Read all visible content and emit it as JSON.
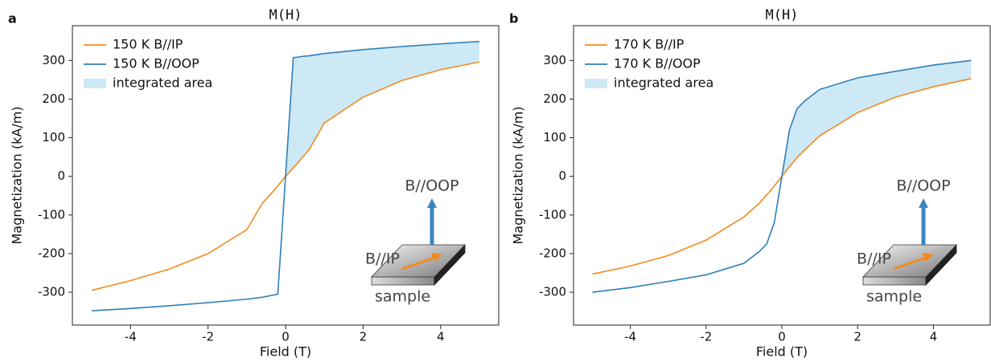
{
  "chart_data": [
    {
      "type": "line",
      "panel_label": "a",
      "title": "M(H)",
      "xlabel": "Field (T)",
      "ylabel": "Magnetization (kA/m)",
      "x": [
        -5,
        -4,
        -3,
        -2,
        -1,
        -0.6,
        -0.4,
        -0.2,
        0,
        0.2,
        0.4,
        0.6,
        1,
        2,
        3,
        4,
        5
      ],
      "series": [
        {
          "name": "150 K B//IP",
          "color": "#f5891f",
          "values": [
            -295,
            -270,
            -240,
            -200,
            -138,
            -70,
            -48,
            -25,
            0,
            22,
            45,
            68,
            138,
            205,
            248,
            276,
            296
          ]
        },
        {
          "name": "150 K B//OOP",
          "color": "#2e7fb8",
          "values": [
            -348,
            -342,
            -335,
            -327,
            -318,
            -313,
            -309,
            -305,
            0,
            307,
            310,
            312,
            318,
            328,
            336,
            343,
            349
          ]
        }
      ],
      "area": {
        "name": "integrated area",
        "color": "#cde9f6"
      },
      "annotations": [
        "B//OOP",
        "B//IP",
        "sample"
      ],
      "xlim": [
        -5.5,
        5.5
      ],
      "ylim": [
        -385,
        390
      ],
      "xticks": [
        -4,
        -2,
        0,
        2,
        4
      ],
      "yticks": [
        -300,
        -200,
        -100,
        0,
        100,
        200,
        300
      ],
      "legend": "upper left"
    },
    {
      "type": "line",
      "panel_label": "b",
      "title": "M(H)",
      "xlabel": "Field (T)",
      "ylabel": "Magnetization (kA/m)",
      "x": [
        -5,
        -4,
        -3,
        -2,
        -1,
        -0.6,
        -0.4,
        -0.2,
        0,
        0.2,
        0.4,
        0.6,
        1,
        2,
        3,
        4,
        5
      ],
      "series": [
        {
          "name": "170 K B//IP",
          "color": "#f5891f",
          "values": [
            -253,
            -232,
            -205,
            -165,
            -105,
            -70,
            -48,
            -25,
            0,
            25,
            48,
            68,
            105,
            165,
            205,
            232,
            253
          ]
        },
        {
          "name": "170 K B//OOP",
          "color": "#2e7fb8",
          "values": [
            -300,
            -288,
            -272,
            -255,
            -225,
            -195,
            -175,
            -120,
            0,
            120,
            175,
            195,
            225,
            255,
            272,
            288,
            300
          ]
        }
      ],
      "area": {
        "name": "integrated area",
        "color": "#cde9f6"
      },
      "annotations": [
        "B//OOP",
        "B//IP",
        "sample"
      ],
      "xlim": [
        -5.5,
        5.5
      ],
      "ylim": [
        -385,
        390
      ],
      "xticks": [
        -4,
        -2,
        0,
        2,
        4
      ],
      "yticks": [
        -300,
        -200,
        -100,
        0,
        100,
        200,
        300
      ],
      "legend": "upper left"
    }
  ]
}
